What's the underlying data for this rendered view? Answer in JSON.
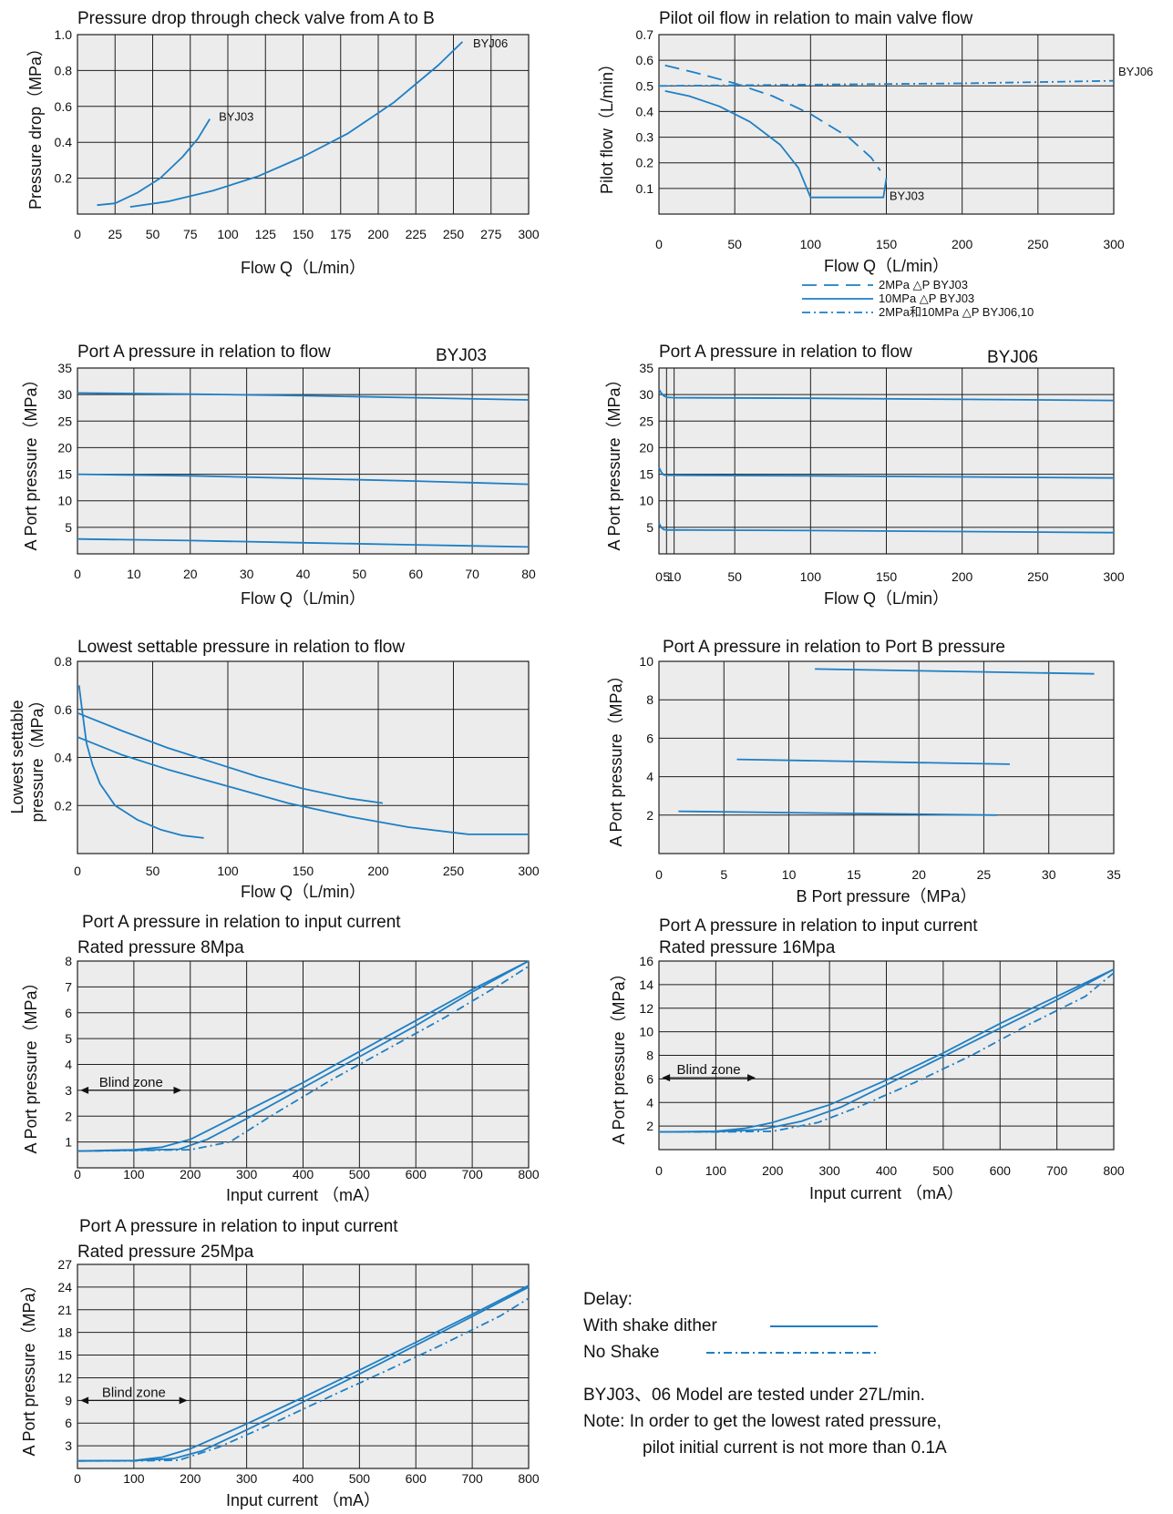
{
  "colors": {
    "curve": "#1e7fc4",
    "grid": "#1f1f1f",
    "plot_bg": "#ececec"
  },
  "chart_data": [
    {
      "id": "c1",
      "type": "line",
      "title": "Pressure drop through check valve from A to B",
      "xlabel": "Flow  Q（L/min）",
      "ylabel": "Pressure  drop（MPa）",
      "xlim": [
        0,
        300
      ],
      "ylim": [
        0,
        1.0
      ],
      "xticks": [
        0,
        25,
        50,
        75,
        100,
        125,
        150,
        175,
        200,
        225,
        250,
        275,
        300
      ],
      "yticks": [
        0.2,
        0.4,
        0.6,
        0.8,
        1.0
      ],
      "ytick_labels": [
        "0.2",
        "0.4",
        "0.6",
        "0.8",
        "1.0"
      ],
      "grid": true,
      "series": [
        {
          "name": "BYJ03",
          "style": "solid",
          "x": [
            13,
            25,
            40,
            55,
            70,
            80,
            88
          ],
          "y": [
            0.05,
            0.06,
            0.12,
            0.2,
            0.32,
            0.42,
            0.53
          ]
        },
        {
          "name": "BYJ06",
          "style": "solid",
          "x": [
            35,
            60,
            90,
            120,
            150,
            180,
            210,
            240,
            256
          ],
          "y": [
            0.04,
            0.07,
            0.13,
            0.21,
            0.32,
            0.45,
            0.62,
            0.83,
            0.96
          ]
        }
      ],
      "labels": [
        {
          "text": "BYJ03",
          "x": 94,
          "y": 0.52
        },
        {
          "text": "BYJ06",
          "x": 263,
          "y": 0.93
        }
      ]
    },
    {
      "id": "c2",
      "type": "line",
      "title": "Pilot oil flow in relation to main valve flow",
      "xlabel": "Flow  Q（L/min）",
      "ylabel": "Pilot flow（L/min）",
      "xlim": [
        0,
        300
      ],
      "ylim": [
        0,
        0.7
      ],
      "xticks": [
        0,
        50,
        100,
        150,
        200,
        250,
        300
      ],
      "yticks": [
        0.1,
        0.2,
        0.3,
        0.4,
        0.5,
        0.6,
        0.7
      ],
      "ytick_labels": [
        "0.1",
        "0.2",
        "0.3",
        "0.4",
        "0.5",
        "0.6",
        "0.7"
      ],
      "grid": true,
      "series": [
        {
          "name": "2MPa △P BYJ03",
          "style": "dashed",
          "x": [
            4,
            25,
            50,
            75,
            100,
            125,
            140,
            146
          ],
          "y": [
            0.58,
            0.55,
            0.51,
            0.46,
            0.39,
            0.3,
            0.22,
            0.17
          ]
        },
        {
          "name": "10MPa △P BYJ03",
          "style": "solid",
          "x": [
            4,
            20,
            40,
            60,
            80,
            92,
            100,
            148,
            149,
            150
          ],
          "y": [
            0.48,
            0.46,
            0.42,
            0.36,
            0.27,
            0.18,
            0.065,
            0.065,
            0.1,
            0.14
          ]
        },
        {
          "name": "2MPa和10MPa △P BYJ06,10",
          "style": "dashdot",
          "x": [
            0,
            100,
            200,
            300
          ],
          "y": [
            0.5,
            0.505,
            0.51,
            0.52
          ]
        }
      ],
      "labels": [
        {
          "text": "BYJ03",
          "x": 152,
          "y": 0.055
        },
        {
          "text": "BYJ06",
          "x": 303,
          "y": 0.54
        }
      ]
    },
    {
      "id": "c3",
      "type": "line",
      "title": "Port A pressure in relation to flow",
      "subtitle": "BYJ03",
      "xlabel": "Flow Q（L/min）",
      "ylabel": "A Port  pressure（MPa）",
      "xlim": [
        0,
        80
      ],
      "ylim": [
        0,
        35
      ],
      "xticks": [
        0,
        10,
        20,
        30,
        40,
        50,
        60,
        70,
        80
      ],
      "yticks": [
        5,
        10,
        15,
        20,
        25,
        30,
        35
      ],
      "ytick_labels": [
        "5",
        "10",
        "15",
        "20",
        "25",
        "30",
        "35"
      ],
      "grid": true,
      "series": [
        {
          "x": [
            0,
            20,
            40,
            60,
            80
          ],
          "y": [
            30.3,
            30.1,
            29.8,
            29.4,
            29.0
          ],
          "style": "solid"
        },
        {
          "x": [
            0,
            20,
            40,
            60,
            80
          ],
          "y": [
            15.0,
            14.7,
            14.2,
            13.7,
            13.1
          ],
          "style": "solid"
        },
        {
          "x": [
            0,
            20,
            40,
            60,
            80
          ],
          "y": [
            2.8,
            2.5,
            2.1,
            1.7,
            1.3
          ],
          "style": "solid"
        }
      ]
    },
    {
      "id": "c4",
      "type": "line",
      "title": "Port A pressure in relation to flow",
      "subtitle": "BYJ06",
      "xlabel": "Flow Q（L/min）",
      "ylabel": "A Port  pressure（MPa）",
      "xlim": [
        0,
        300
      ],
      "ylim": [
        0,
        35
      ],
      "xticks": [
        0,
        5,
        10,
        50,
        100,
        150,
        200,
        250,
        300
      ],
      "xtick_labels": [
        "0",
        "5",
        "10",
        "50",
        "100",
        "150",
        "200",
        "250",
        "300"
      ],
      "yticks": [
        5,
        10,
        15,
        20,
        25,
        30,
        35
      ],
      "ytick_labels": [
        "5",
        "10",
        "15",
        "20",
        "25",
        "30",
        "35"
      ],
      "grid": true,
      "series": [
        {
          "x": [
            0,
            1.5,
            3,
            5,
            10,
            100,
            200,
            300
          ],
          "y": [
            31,
            30.3,
            29.8,
            29.5,
            29.4,
            29.3,
            29.1,
            28.9
          ],
          "style": "solid"
        },
        {
          "x": [
            0,
            1.5,
            3,
            5,
            10,
            100,
            200,
            300
          ],
          "y": [
            16.3,
            15.4,
            14.9,
            14.8,
            14.8,
            14.7,
            14.5,
            14.3
          ],
          "style": "solid"
        },
        {
          "x": [
            0,
            1.5,
            3,
            5,
            10,
            100,
            200,
            300
          ],
          "y": [
            5.8,
            5.0,
            4.6,
            4.5,
            4.5,
            4.4,
            4.2,
            4.0
          ],
          "style": "solid"
        }
      ]
    },
    {
      "id": "c5",
      "type": "line",
      "title": "Lowest settable pressure in relation to flow",
      "xlabel": "Flow Q（L/min）",
      "ylabel_lines": [
        "Lowest settable",
        "pressure（MPa）"
      ],
      "xlim": [
        0,
        300
      ],
      "ylim": [
        0,
        0.8
      ],
      "xticks": [
        0,
        50,
        100,
        150,
        200,
        250,
        300
      ],
      "yticks": [
        0.2,
        0.4,
        0.6,
        0.8
      ],
      "ytick_labels": [
        "0.2",
        "0.4",
        "0.6",
        "0.8"
      ],
      "grid": true,
      "series": [
        {
          "x": [
            1,
            3,
            6,
            10,
            15,
            25,
            40,
            55,
            70,
            84
          ],
          "y": [
            0.7,
            0.6,
            0.46,
            0.37,
            0.29,
            0.2,
            0.14,
            0.1,
            0.075,
            0.065
          ],
          "style": "solid"
        },
        {
          "x": [
            0,
            30,
            60,
            90,
            120,
            150,
            180,
            203
          ],
          "y": [
            0.585,
            0.51,
            0.44,
            0.38,
            0.32,
            0.27,
            0.23,
            0.21
          ],
          "style": "solid"
        },
        {
          "x": [
            0,
            30,
            60,
            100,
            140,
            180,
            220,
            260,
            300
          ],
          "y": [
            0.485,
            0.41,
            0.35,
            0.28,
            0.21,
            0.155,
            0.11,
            0.08,
            0.08
          ],
          "style": "solid"
        }
      ]
    },
    {
      "id": "c6",
      "type": "line",
      "title": "Port A pressure  in relation to Port B pressure",
      "xlabel": "B Port  pressure（MPa）",
      "ylabel": "A Port  pressure（MPa）",
      "xlim": [
        0,
        35
      ],
      "ylim": [
        0,
        10
      ],
      "xticks": [
        0,
        5,
        10,
        15,
        20,
        25,
        30,
        35
      ],
      "yticks": [
        2,
        4,
        6,
        8,
        10
      ],
      "ytick_labels": [
        "2",
        "4",
        "6",
        "8",
        "10"
      ],
      "grid": true,
      "series": [
        {
          "x": [
            12,
            33.5
          ],
          "y": [
            9.6,
            9.35
          ],
          "style": "solid"
        },
        {
          "x": [
            6,
            27
          ],
          "y": [
            4.9,
            4.65
          ],
          "style": "solid"
        },
        {
          "x": [
            1.5,
            26
          ],
          "y": [
            2.2,
            2.0
          ],
          "style": "solid"
        }
      ]
    },
    {
      "id": "c7",
      "type": "line",
      "title": "Port A pressure in relation to input current",
      "subtitle": "Rated pressure 8Mpa",
      "xlabel": "Input current （mA）",
      "ylabel": "A Port  pressure（MPa）",
      "xlim": [
        0,
        800
      ],
      "ylim": [
        0,
        8
      ],
      "xticks": [
        0,
        100,
        200,
        300,
        400,
        500,
        600,
        700,
        800
      ],
      "yticks": [
        1,
        2,
        3,
        4,
        5,
        6,
        7,
        8
      ],
      "ytick_labels": [
        "1",
        "2",
        "3",
        "4",
        "5",
        "6",
        "7",
        "8"
      ],
      "grid": true,
      "blind_zone": {
        "text": "Blind zone",
        "x_from": 5,
        "x_to": 185,
        "y": 3.0
      },
      "series": [
        {
          "style": "solid",
          "x": [
            0,
            100,
            150,
            200,
            300,
            400,
            500,
            600,
            700,
            800
          ],
          "y": [
            0.65,
            0.7,
            0.8,
            1.1,
            2.2,
            3.3,
            4.5,
            5.7,
            6.9,
            8.0
          ]
        },
        {
          "style": "solid",
          "x": [
            0,
            100,
            180,
            230,
            300,
            400,
            500,
            600,
            700,
            800
          ],
          "y": [
            0.65,
            0.68,
            0.72,
            1.1,
            1.9,
            3.1,
            4.3,
            5.5,
            6.8,
            8.0
          ]
        },
        {
          "style": "dashdot",
          "x": [
            0,
            100,
            200,
            270,
            350,
            450,
            550,
            650,
            750,
            800
          ],
          "y": [
            0.65,
            0.67,
            0.7,
            1.0,
            2.1,
            3.4,
            4.6,
            5.8,
            7.1,
            7.8
          ]
        }
      ]
    },
    {
      "id": "c8",
      "type": "line",
      "title": "Port A pressure in relation to input current",
      "subtitle": "Rated pressure 16Mpa",
      "xlabel": "Input current （mA）",
      "ylabel": "A Port  pressure（MPa）",
      "xlim": [
        0,
        800
      ],
      "ylim": [
        0,
        16
      ],
      "xticks": [
        0,
        100,
        200,
        300,
        400,
        500,
        600,
        700,
        800
      ],
      "yticks": [
        2,
        4,
        6,
        8,
        10,
        12,
        14,
        16
      ],
      "ytick_labels": [
        "2",
        "4",
        "6",
        "8",
        "10",
        "12",
        "14",
        "16"
      ],
      "grid": true,
      "blind_zone": {
        "text": "Blind zone",
        "x_from": 5,
        "x_to": 170,
        "y": 6.1
      },
      "series": [
        {
          "style": "solid",
          "x": [
            0,
            100,
            150,
            200,
            300,
            400,
            500,
            600,
            700,
            800
          ],
          "y": [
            1.5,
            1.55,
            1.8,
            2.3,
            3.8,
            5.9,
            8.2,
            10.7,
            13.0,
            15.3
          ]
        },
        {
          "style": "solid",
          "x": [
            0,
            100,
            180,
            250,
            320,
            400,
            500,
            600,
            700,
            800
          ],
          "y": [
            1.5,
            1.52,
            1.7,
            2.4,
            3.6,
            5.5,
            7.9,
            10.3,
            12.7,
            15.3
          ]
        },
        {
          "style": "dashdot",
          "x": [
            0,
            100,
            200,
            280,
            350,
            450,
            550,
            650,
            750,
            800
          ],
          "y": [
            1.5,
            1.5,
            1.55,
            2.3,
            3.6,
            5.7,
            8.0,
            10.6,
            13.0,
            15.0
          ]
        }
      ]
    },
    {
      "id": "c9",
      "type": "line",
      "title": "Port A pressure in relation to input current",
      "subtitle": "Rated pressure 25Mpa",
      "xlabel": "Input current （mA）",
      "ylabel": "A Port  pressure（MPa）",
      "xlim": [
        0,
        800
      ],
      "ylim": [
        0,
        27
      ],
      "xticks": [
        0,
        100,
        200,
        300,
        400,
        500,
        600,
        700,
        800
      ],
      "yticks": [
        3,
        6,
        9,
        12,
        15,
        18,
        21,
        24,
        27
      ],
      "ytick_labels": [
        "3",
        "6",
        "9",
        "12",
        "15",
        "18",
        "21",
        "24",
        "27"
      ],
      "grid": true,
      "blind_zone": {
        "text": "Blind zone",
        "x_from": 5,
        "x_to": 195,
        "y": 9.0
      },
      "series": [
        {
          "style": "solid",
          "x": [
            0,
            100,
            150,
            200,
            300,
            400,
            500,
            600,
            700,
            800
          ],
          "y": [
            1.0,
            1.05,
            1.5,
            2.6,
            5.9,
            9.4,
            13.0,
            16.7,
            20.4,
            24.2
          ]
        },
        {
          "style": "solid",
          "x": [
            0,
            100,
            170,
            220,
            300,
            400,
            500,
            600,
            700,
            800
          ],
          "y": [
            1.0,
            1.02,
            1.3,
            2.3,
            5.1,
            8.8,
            12.5,
            16.3,
            20.1,
            24.0
          ]
        },
        {
          "style": "dashdot",
          "x": [
            0,
            100,
            180,
            250,
            350,
            450,
            550,
            650,
            750,
            800
          ],
          "y": [
            1.0,
            1.0,
            1.1,
            2.8,
            6.1,
            9.6,
            13.0,
            16.5,
            20.2,
            22.5
          ]
        }
      ]
    }
  ],
  "legend": {
    "title": "Delay:",
    "with_shake": "With shake dither",
    "no_shake": "No Shake"
  },
  "notes": {
    "tested": "BYJ03、06 Model are tested under 27L/min.",
    "note1": "Note: In order to get the lowest rated pressure,",
    "note2": "pilot initial current is not more than 0.1A"
  }
}
